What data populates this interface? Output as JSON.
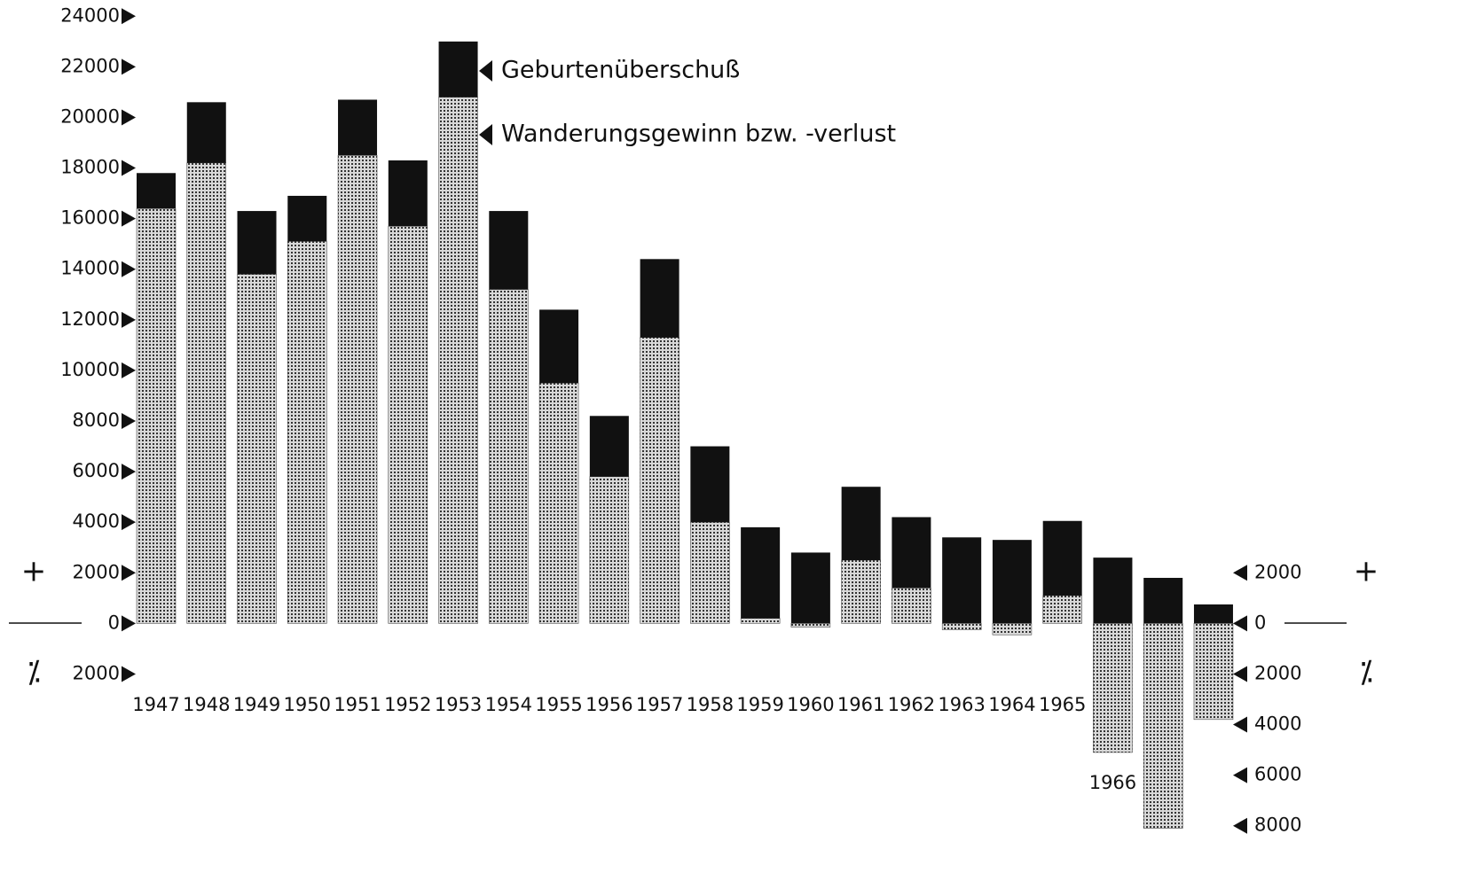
{
  "chart_data": {
    "type": "stacked-bar",
    "categories": [
      "1947",
      "1948",
      "1949",
      "1950",
      "1951",
      "1952",
      "1953",
      "1954",
      "1955",
      "1956",
      "1957",
      "1958",
      "1959",
      "1960",
      "1961",
      "1962",
      "1963",
      "1964",
      "1965",
      "1966",
      null,
      null
    ],
    "series": [
      {
        "name": "Geburtenüberschuß",
        "color": "#111111",
        "values": [
          1400,
          2400,
          2500,
          1800,
          2200,
          2600,
          2200,
          3100,
          2900,
          2400,
          3100,
          3000,
          3600,
          2800,
          2900,
          2800,
          3400,
          3300,
          2950,
          2600,
          1800,
          750
        ]
      },
      {
        "name": "Wanderungsgewinn bzw. -verlust",
        "color": "#9a9a9a",
        "values": [
          16400,
          18200,
          13800,
          15100,
          18500,
          15700,
          20800,
          13200,
          9500,
          5800,
          11300,
          4000,
          200,
          -150,
          2500,
          1400,
          -250,
          -450,
          1100,
          -5100,
          -8100,
          -3800
        ]
      }
    ],
    "ylim": [
      -8500,
      24500
    ],
    "yticks": [
      24000,
      22000,
      20000,
      18000,
      16000,
      14000,
      12000,
      10000,
      8000,
      6000,
      4000,
      2000,
      0,
      {
        "value": -2000,
        "label": "2000"
      }
    ],
    "y2lim": [
      -8500,
      24500
    ],
    "y2ticks": [
      2000,
      0,
      {
        "value": -2000,
        "label": "2000"
      },
      {
        "value": -4000,
        "label": "4000"
      },
      {
        "value": -6000,
        "label": "6000"
      },
      {
        "value": -8000,
        "label": "8000"
      }
    ],
    "plus_sign": "+",
    "minus_sign": "⁒"
  }
}
